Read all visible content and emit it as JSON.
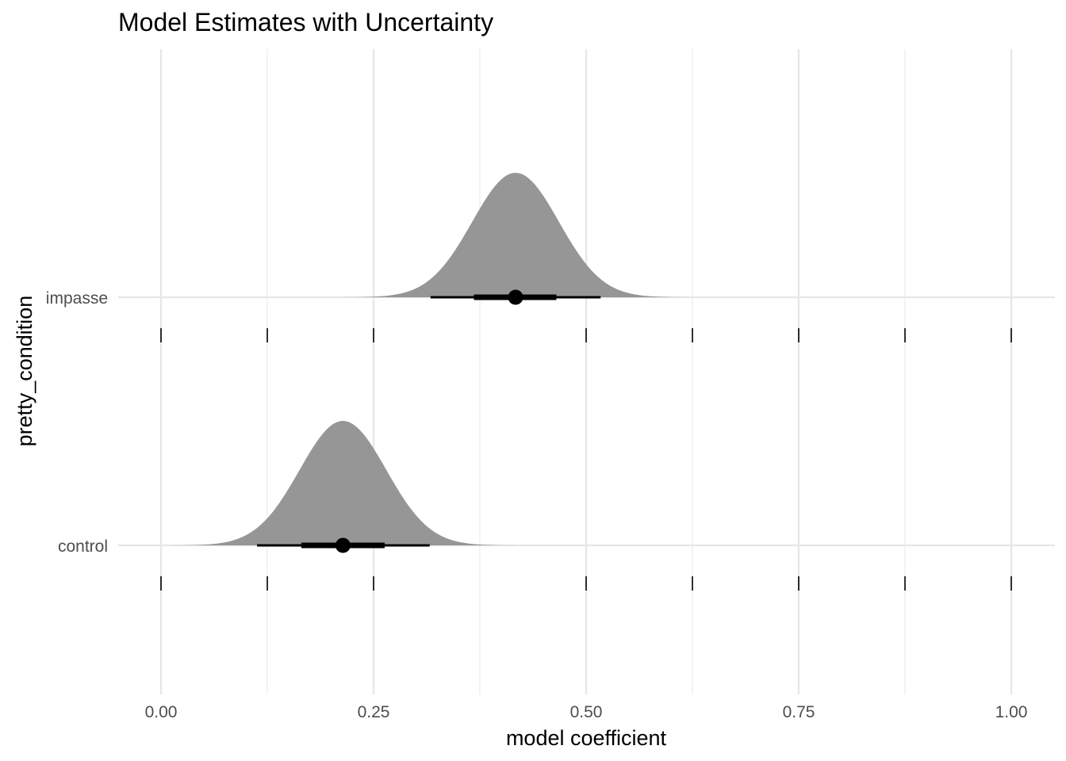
{
  "chart_data": {
    "type": "halfeye",
    "title": "Model Estimates with Uncertainty",
    "xlabel": "model coefficient",
    "ylabel": "pretty_condition",
    "xlim": [
      0.0,
      1.0
    ],
    "x_ticks": [
      0.0,
      0.25,
      0.5,
      0.75,
      1.0
    ],
    "x_tick_labels": [
      "0.00",
      "0.25",
      "0.50",
      "0.75",
      "1.00"
    ],
    "x_minor_ticks": [
      0.125,
      0.375,
      0.625,
      0.875
    ],
    "categories": [
      "impasse",
      "control"
    ],
    "series": [
      {
        "name": "impasse",
        "mean": 0.417,
        "sd": 0.051,
        "interval_66": [
          0.368,
          0.465
        ],
        "interval_95": [
          0.317,
          0.517
        ]
      },
      {
        "name": "control",
        "mean": 0.214,
        "sd": 0.051,
        "interval_66": [
          0.165,
          0.263
        ],
        "interval_95": [
          0.113,
          0.316
        ]
      }
    ],
    "rug_ticks": [
      0.0,
      0.125,
      0.25,
      0.5,
      0.625,
      0.75,
      0.875,
      1.0
    ],
    "density_color": "#969696",
    "grid": true
  }
}
